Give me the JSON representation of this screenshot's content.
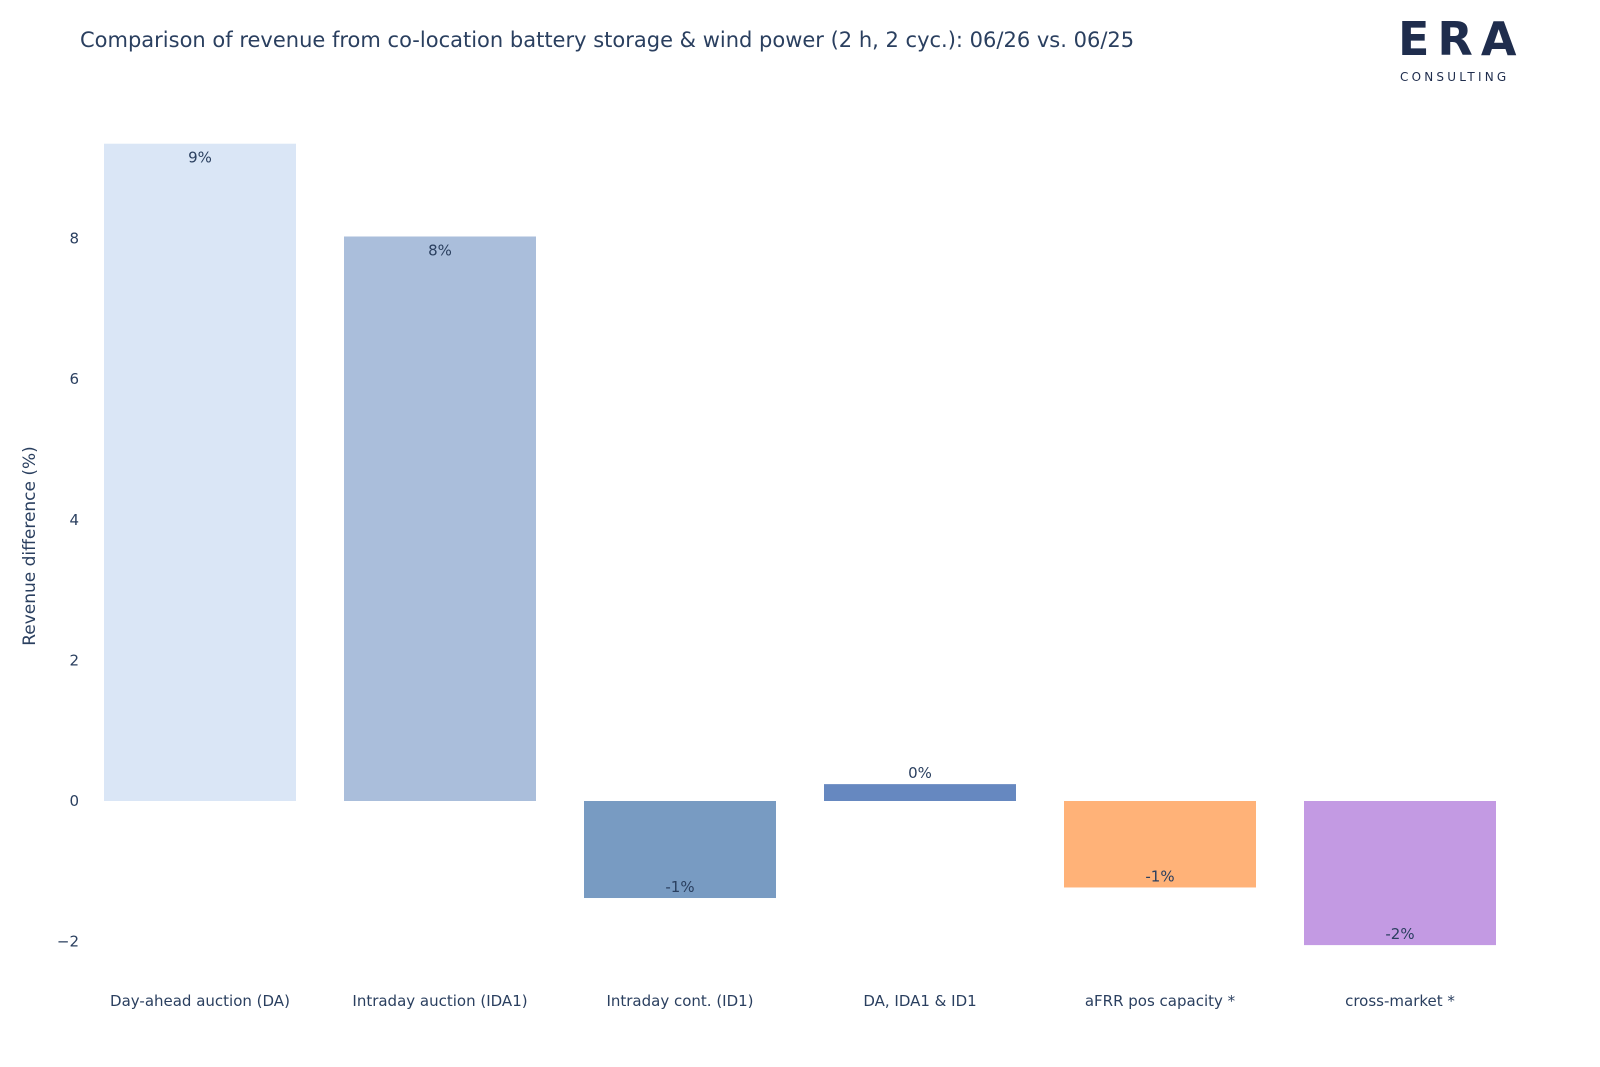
{
  "title": "Comparison of revenue from co-location battery storage & wind power (2 h, 2 cyc.): 06/26 vs. 06/25",
  "logo": {
    "letters": "ERA",
    "subtitle": "CONSULTING",
    "color": "#1f2d4d"
  },
  "chart_data": {
    "type": "bar",
    "categories": [
      "Day-ahead auction (DA)",
      "Intraday auction (IDA1)",
      "Intraday cont. (ID1)",
      "DA, IDA1 & ID1",
      "aFRR pos capacity *",
      "cross-market *"
    ],
    "values": [
      9.35,
      8.03,
      -1.38,
      0.24,
      -1.23,
      -2.05
    ],
    "data_labels": [
      "9%",
      "8%",
      "-1%",
      "0%",
      "-1%",
      "-2%"
    ],
    "colors": [
      "#dae6f6",
      "#aabedb",
      "#789bc2",
      "#6688c0",
      "#ffb278",
      "#c39ae3"
    ],
    "title": "Comparison of revenue from co-location battery storage & wind power (2 h, 2 cyc.): 06/26 vs. 06/25",
    "xlabel": "",
    "ylabel": "Revenue difference (%)",
    "ylim": [
      -2.5,
      9.6
    ],
    "yticks": [
      -2,
      0,
      2,
      4,
      6,
      8
    ],
    "ytick_labels": [
      "−2",
      "0",
      "2",
      "4",
      "6",
      "8"
    ],
    "grid": false,
    "legend": "none"
  }
}
